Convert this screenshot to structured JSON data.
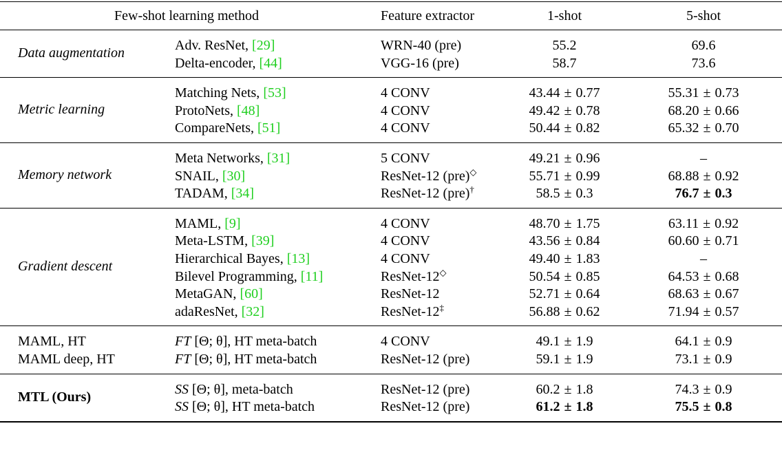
{
  "header": {
    "method": "Few-shot learning method",
    "feature": "Feature extractor",
    "one_shot": "1-shot",
    "five_shot": "5-shot"
  },
  "groups": [
    {
      "category": "Data augmentation",
      "rows": [
        {
          "method": "Adv. ResNet, ",
          "ref": "[29]",
          "feature": "WRN-40 (pre)",
          "one": "55.2",
          "five": "69.6"
        },
        {
          "method": "Delta-encoder, ",
          "ref": "[44]",
          "feature": "VGG-16 (pre)",
          "one": "58.7",
          "five": "73.6"
        }
      ]
    },
    {
      "category": "Metric learning",
      "rows": [
        {
          "method": "Matching Nets, ",
          "ref": "[53]",
          "feature": "4 CONV",
          "one_m": "43.44",
          "one_s": "0.77",
          "five_m": "55.31",
          "five_s": "0.73"
        },
        {
          "method": "ProtoNets, ",
          "ref": "[48]",
          "feature": "4 CONV",
          "one_m": "49.42",
          "one_s": "0.78",
          "five_m": "68.20",
          "five_s": "0.66"
        },
        {
          "method": "CompareNets, ",
          "ref": "[51]",
          "feature": "4 CONV",
          "one_m": "50.44",
          "one_s": "0.82",
          "five_m": "65.32",
          "five_s": "0.70"
        }
      ]
    },
    {
      "category": "Memory network",
      "rows": [
        {
          "method": "Meta Networks, ",
          "ref": "[31]",
          "feature": "5 CONV",
          "one_m": "49.21",
          "one_s": "0.96",
          "five_dash": "–"
        },
        {
          "method": "SNAIL, ",
          "ref": "[30]",
          "feature": "ResNet-12 (pre)",
          "feature_sup": "◇",
          "one_m": "55.71",
          "one_s": "0.99",
          "five_m": "68.88",
          "five_s": "0.92"
        },
        {
          "method": "TADAM, ",
          "ref": "[34]",
          "feature": "ResNet-12 (pre)",
          "feature_sup": "†",
          "one_m": "58.5",
          "one_s": "0.3",
          "five_m": "76.7",
          "five_s": "0.3"
        }
      ]
    },
    {
      "category": "Gradient descent",
      "rows": [
        {
          "method": "MAML, ",
          "ref": "[9]",
          "feature": "4 CONV",
          "one_m": "48.70",
          "one_s": "1.75",
          "five_m": "63.11",
          "five_s": "0.92"
        },
        {
          "method": "Meta-LSTM, ",
          "ref": "[39]",
          "feature": "4 CONV",
          "one_m": "43.56",
          "one_s": "0.84",
          "five_m": "60.60",
          "five_s": "0.71"
        },
        {
          "method": "Hierarchical Bayes, ",
          "ref": "[13]",
          "feature": "4 CONV",
          "one_m": "49.40",
          "one_s": "1.83",
          "five_dash": "–"
        },
        {
          "method": "Bilevel Programming, ",
          "ref": "[11]",
          "feature": "ResNet-12",
          "feature_sup": "◇",
          "one_m": "50.54",
          "one_s": "0.85",
          "five_m": "64.53",
          "five_s": "0.68"
        },
        {
          "method": "MetaGAN, ",
          "ref": "[60]",
          "feature": "ResNet-12",
          "one_m": "52.71",
          "one_s": "0.64",
          "five_m": "68.63",
          "five_s": "0.67"
        },
        {
          "method": "adaResNet, ",
          "ref": "[32]",
          "feature": "ResNet-12",
          "feature_sup": "‡",
          "one_m": "56.88",
          "one_s": "0.62",
          "five_m": "71.94",
          "five_s": "0.57"
        }
      ]
    },
    {
      "rows": [
        {
          "name": "MAML, HT",
          "method_it": "FT",
          "method_rest": " [Θ; θ], HT meta-batch",
          "feature": "4 CONV",
          "one_m": "49.1",
          "one_s": "1.9",
          "five_m": "64.1",
          "five_s": "0.9"
        },
        {
          "name": "MAML deep, HT",
          "method_it": "FT",
          "method_rest": " [Θ; θ], HT meta-batch",
          "feature": "ResNet-12 (pre)",
          "one_m": "59.1",
          "one_s": "1.9",
          "five_m": "73.1",
          "five_s": "0.9"
        }
      ]
    },
    {
      "category": "MTL (Ours)",
      "rows": [
        {
          "method_it": "SS",
          "method_rest": " [Θ; θ], meta-batch",
          "feature": "ResNet-12 (pre)",
          "one_m": "60.2",
          "one_s": "1.8",
          "five_m": "74.3",
          "five_s": "0.9"
        },
        {
          "method_it": "SS",
          "method_rest": " [Θ; θ], HT meta-batch",
          "feature": "ResNet-12 (pre)",
          "one_m": "61.2",
          "one_s": "1.8",
          "five_m": "75.5",
          "five_s": "0.8"
        }
      ]
    }
  ],
  "pm_symbol": "±"
}
